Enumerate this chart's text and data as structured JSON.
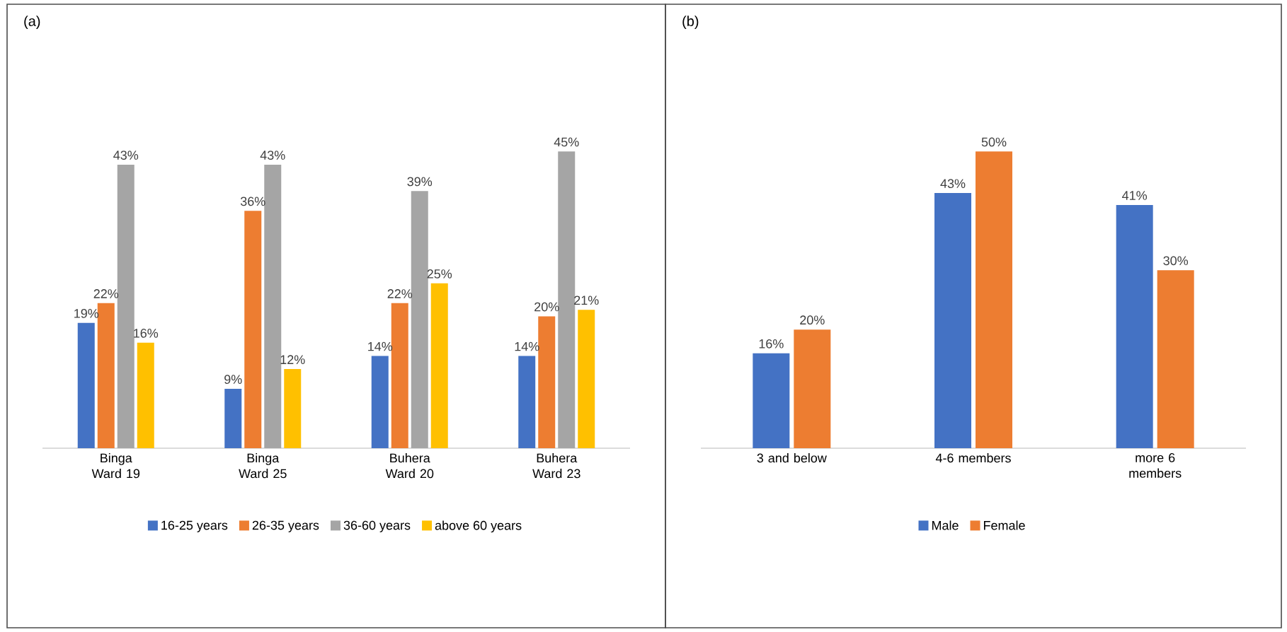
{
  "chart_data": [
    {
      "type": "bar",
      "title": "(a)",
      "categories": [
        "Binga Ward 19",
        "Binga Ward 25",
        "Buhera Ward 20",
        "Buhera Ward 23"
      ],
      "legend": "bottom",
      "series": [
        {
          "name": "16-25 years",
          "color": "#4472c4",
          "values": [
            19,
            9,
            14,
            14
          ],
          "value_labels": [
            "19%",
            "9%",
            "14%",
            "14%"
          ]
        },
        {
          "name": "26-35 years",
          "color": "#ed7d31",
          "values": [
            22,
            36,
            22,
            20
          ],
          "value_labels": [
            "22%",
            "36%",
            "22%",
            "20%"
          ]
        },
        {
          "name": "36-60 years",
          "color": "#a5a5a5",
          "values": [
            43,
            43,
            39,
            45
          ],
          "value_labels": [
            "43%",
            "43%",
            "39%",
            "45%"
          ]
        },
        {
          "name": "above 60 years",
          "color": "#ffc000",
          "values": [
            16,
            12,
            25,
            21
          ],
          "value_labels": [
            "16%",
            "12%",
            "25%",
            "21%"
          ]
        }
      ]
    },
    {
      "type": "bar",
      "title": "(b)",
      "categories": [
        "3 and below",
        "4-6 members",
        "more 6 members"
      ],
      "legend": "bottom",
      "series": [
        {
          "name": "Male",
          "color": "#4472c4",
          "values": [
            16,
            43,
            41
          ],
          "value_labels": [
            "16%",
            "43%",
            "41%"
          ]
        },
        {
          "name": "Female",
          "color": "#ed7d31",
          "values": [
            20,
            50,
            30
          ],
          "value_labels": [
            "20%",
            "50%",
            "30%"
          ]
        }
      ]
    }
  ]
}
